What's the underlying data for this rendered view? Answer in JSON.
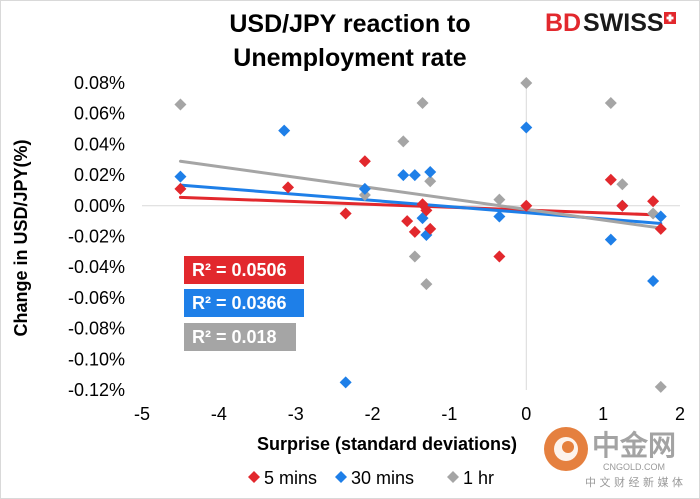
{
  "brand": {
    "bd": "BD",
    "swiss": "SWISS",
    "colors": {
      "bd": "#e2282d",
      "swiss": "#1a1a1a",
      "flag": "#e2282d"
    }
  },
  "watermark": {
    "cn_title": "中金网",
    "url": "CNGOLD.COM",
    "subtitle": "中 文 财 经 新 媒 体",
    "colors": {
      "circle": "#e06a1d",
      "text": "#9a9a9a"
    }
  },
  "colors": {
    "5 mins": "#e2282d",
    "30 mins": "#1e7fe8",
    "1 hr": "#a5a5a5"
  },
  "chart_data": {
    "type": "scatter",
    "title": "USD/JPY reaction to Unemployment rate",
    "title_lines": [
      "USD/JPY reaction to",
      "Unemployment rate"
    ],
    "xlabel": "Surprise (standard deviations)",
    "ylabel": "Change in USD/JPY(%)",
    "xlim": [
      -5,
      2
    ],
    "ylim": [
      -0.12,
      0.08
    ],
    "xticks": [
      "-5",
      "-4",
      "-3",
      "-2",
      "-1",
      "0",
      "1",
      "2"
    ],
    "xtick_values": [
      -5,
      -4,
      -3,
      -2,
      -1,
      0,
      1,
      2
    ],
    "yticks": [
      "0.08%",
      "0.06%",
      "0.04%",
      "0.02%",
      "0.00%",
      "-0.02%",
      "-0.04%",
      "-0.06%",
      "-0.08%",
      "-0.10%",
      "-0.12%"
    ],
    "ytick_values": [
      0.08,
      0.06,
      0.04,
      0.02,
      0,
      -0.02,
      -0.04,
      -0.06,
      -0.08,
      -0.1,
      -0.12
    ],
    "grid": false,
    "legend_position": "bottom",
    "series": [
      {
        "name": "5 mins",
        "marker": "diamond",
        "points": [
          [
            -4.5,
            0.011
          ],
          [
            -3.1,
            0.012
          ],
          [
            -2.35,
            -0.005
          ],
          [
            -2.1,
            0.029
          ],
          [
            -1.55,
            -0.01
          ],
          [
            -1.45,
            -0.017
          ],
          [
            -1.35,
            0.001
          ],
          [
            -1.3,
            -0.003
          ],
          [
            -1.25,
            -0.015
          ],
          [
            -0.35,
            -0.033
          ],
          [
            0,
            0
          ],
          [
            1.1,
            0.017
          ],
          [
            1.25,
            0
          ],
          [
            1.65,
            0.003
          ],
          [
            1.75,
            -0.015
          ]
        ],
        "trend": {
          "x": [
            -4.5,
            1.75
          ],
          "y": [
            0.0055,
            -0.006
          ]
        },
        "r2_label": "R² = 0.0506"
      },
      {
        "name": "30 mins",
        "marker": "diamond",
        "points": [
          [
            -4.5,
            0.019
          ],
          [
            -3.15,
            0.049
          ],
          [
            -2.35,
            -0.115
          ],
          [
            -2.1,
            0.011
          ],
          [
            -1.6,
            0.02
          ],
          [
            -1.45,
            0.02
          ],
          [
            -1.35,
            -0.008
          ],
          [
            -1.3,
            -0.019
          ],
          [
            -1.25,
            0.022
          ],
          [
            -0.35,
            -0.007
          ],
          [
            0,
            0.051
          ],
          [
            1.1,
            -0.022
          ],
          [
            1.25,
            0
          ],
          [
            1.65,
            -0.049
          ],
          [
            1.75,
            -0.007
          ]
        ],
        "trend": {
          "x": [
            -4.5,
            1.75
          ],
          "y": [
            0.0135,
            -0.0115
          ]
        },
        "r2_label": "R² = 0.0366"
      },
      {
        "name": "1 hr",
        "marker": "diamond",
        "points": [
          [
            -4.5,
            0.066
          ],
          [
            -2.1,
            0.007
          ],
          [
            -1.6,
            0.042
          ],
          [
            -1.45,
            -0.033
          ],
          [
            -1.35,
            0.067
          ],
          [
            -1.3,
            -0.051
          ],
          [
            -1.25,
            0.016
          ],
          [
            -0.35,
            0.004
          ],
          [
            0,
            0.08
          ],
          [
            1.1,
            0.067
          ],
          [
            1.25,
            0.014
          ],
          [
            1.65,
            -0.005
          ],
          [
            1.75,
            -0.118
          ]
        ],
        "trend": {
          "x": [
            -4.5,
            1.75
          ],
          "y": [
            0.029,
            -0.0145
          ]
        },
        "r2_label": "R² = 0.018"
      }
    ]
  }
}
